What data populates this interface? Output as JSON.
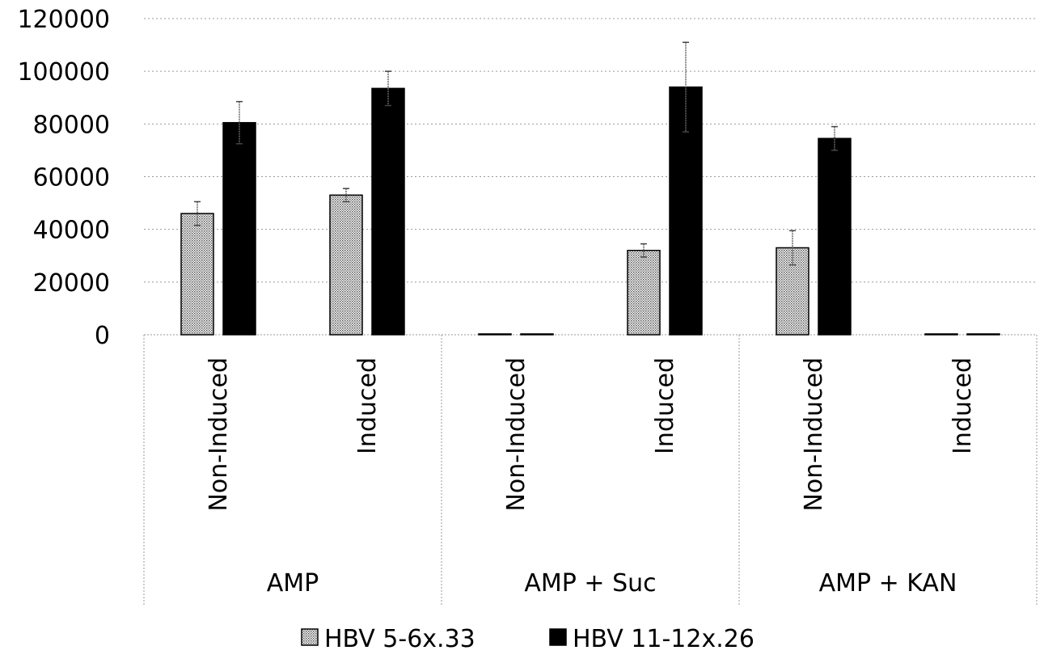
{
  "chart_data": {
    "type": "bar",
    "title": "",
    "xlabel": "",
    "ylabel": "",
    "ylim": [
      0,
      120000
    ],
    "yticks": [
      0,
      20000,
      40000,
      60000,
      80000,
      100000,
      120000
    ],
    "ytick_labels": [
      "0",
      "20000",
      "40000",
      "60000",
      "80000",
      "100000",
      "120000"
    ],
    "grid": true,
    "grid_style": "dotted",
    "legend_position": "bottom",
    "groups": [
      {
        "label": "AMP",
        "categories": [
          "Non-Induced",
          "Induced"
        ]
      },
      {
        "label": "AMP + Suc",
        "categories": [
          "Non-Induced",
          "Induced"
        ]
      },
      {
        "label": "AMP + KAN",
        "categories": [
          "Non-Induced",
          "Induced"
        ]
      }
    ],
    "series": [
      {
        "name": "HBV 5-6x.33",
        "fill": "dotted-gray",
        "values": [
          46000,
          53000,
          0,
          32000,
          33000,
          0
        ],
        "errors": [
          4500,
          2500,
          0,
          2500,
          6500,
          0
        ]
      },
      {
        "name": "HBV 11-12x.26",
        "fill": "#000000",
        "values": [
          80500,
          93500,
          0,
          94000,
          74500,
          0
        ],
        "errors": [
          8000,
          6500,
          0,
          17000,
          4500,
          0
        ]
      }
    ]
  }
}
